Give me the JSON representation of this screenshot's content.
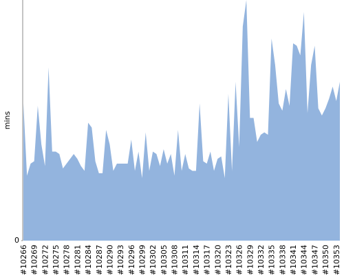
{
  "chart_data": {
    "type": "area",
    "y_label": "mins",
    "color": "#93b4de",
    "categories": [
      "#10266",
      null,
      null,
      "#10269",
      null,
      null,
      "#10272",
      null,
      null,
      "#10275",
      null,
      null,
      "#10278",
      null,
      null,
      "#10281",
      null,
      null,
      "#10284",
      null,
      null,
      "#10287",
      null,
      null,
      "#10290",
      null,
      null,
      "#10293",
      null,
      null,
      "#10296",
      null,
      null,
      "#10299",
      null,
      null,
      "#10302",
      null,
      null,
      "#10305",
      null,
      null,
      "#10308",
      null,
      null,
      "#10311",
      null,
      null,
      "#10314",
      null,
      null,
      "#10317",
      null,
      null,
      "#10320",
      null,
      null,
      "#10323",
      null,
      null,
      "#10326",
      null,
      null,
      "#10329",
      null,
      null,
      "#10332",
      null,
      null,
      "#10335",
      null,
      null,
      "#10338",
      null,
      null,
      "#10341",
      null,
      null,
      "#10344",
      null,
      null,
      "#10347",
      null,
      null,
      "#10350",
      null,
      null,
      "#10353",
      null
    ],
    "values": [
      57,
      27,
      32,
      33,
      56,
      40,
      31,
      72,
      37,
      37,
      36,
      30,
      32,
      34,
      36,
      34,
      31,
      29,
      49,
      47,
      33,
      28,
      28,
      46,
      40,
      29,
      32,
      32,
      32,
      32,
      42,
      29,
      37,
      26,
      45,
      29,
      37,
      36,
      31,
      38,
      32,
      36,
      27,
      46,
      29,
      36,
      30,
      29,
      29,
      57,
      33,
      32,
      37,
      29,
      34,
      35,
      26,
      61,
      29,
      66,
      39,
      89,
      100,
      51,
      51,
      41,
      44,
      45,
      44,
      84,
      73,
      57,
      54,
      63,
      56,
      82,
      81,
      77,
      95,
      53,
      73,
      81,
      55,
      52,
      55,
      59,
      64,
      58,
      66
    ],
    "ylim": [
      0,
      100
    ],
    "yticks": [
      0
    ]
  }
}
